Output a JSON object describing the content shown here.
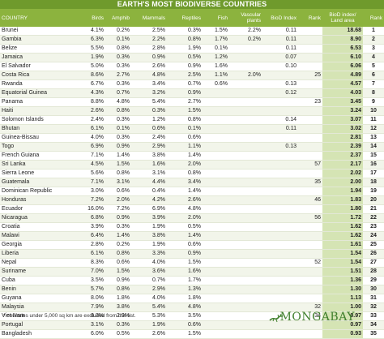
{
  "title": "EARTH'S MOST BIODIVERSE COUNTRIES",
  "columns": [
    "COUNTRY",
    "Birds",
    "Amphib",
    "Mammals",
    "Reptiles",
    "Fish",
    "Vascular plants",
    "BioD Index",
    "Rank",
    "BioD index/ Land area",
    "Rank"
  ],
  "rows": [
    [
      "Brunei",
      "4.1%",
      "0.2%",
      "2.5%",
      "0.3%",
      "1.5%",
      "2.2%",
      "0.11",
      "",
      "18.68",
      "1"
    ],
    [
      "Gambia",
      "6.3%",
      "0.1%",
      "2.2%",
      "0.8%",
      "1.7%",
      "0.2%",
      "0.11",
      "",
      "8.90",
      "2"
    ],
    [
      "Belize",
      "5.5%",
      "0.8%",
      "2.8%",
      "1.9%",
      "0.1%",
      "",
      "0.11",
      "",
      "6.53",
      "3"
    ],
    [
      "Jamaica",
      "1.9%",
      "0.3%",
      "0.9%",
      "0.5%",
      "1.2%",
      "",
      "0.07",
      "",
      "6.10",
      "4"
    ],
    [
      "El Salvador",
      "5.0%",
      "0.3%",
      "2.6%",
      "0.9%",
      "1.6%",
      "",
      "0.10",
      "",
      "6.06",
      "5"
    ],
    [
      "Costa Rica",
      "8.6%",
      "2.7%",
      "4.8%",
      "2.5%",
      "1.1%",
      "2.0%",
      "",
      "25",
      "4.89",
      "6"
    ],
    [
      "Rwanda",
      "6.7%",
      "0.3%",
      "3.4%",
      "0.7%",
      "0.6%",
      "",
      "0.13",
      "",
      "4.57",
      "7"
    ],
    [
      "Equatorial Guinea",
      "4.3%",
      "0.7%",
      "3.2%",
      "0.9%",
      "",
      "",
      "0.12",
      "",
      "4.03",
      "8"
    ],
    [
      "Panama",
      "8.8%",
      "4.8%",
      "5.4%",
      "2.7%",
      "",
      "",
      "",
      "23",
      "3.45",
      "9"
    ],
    [
      "Haiti",
      "2.6%",
      "0.8%",
      "0.3%",
      "1.5%",
      "",
      "",
      "",
      "",
      "3.24",
      "10"
    ],
    [
      "Solomon Islands",
      "2.4%",
      "0.3%",
      "1.2%",
      "0.8%",
      "",
      "",
      "0.14",
      "",
      "3.07",
      "11"
    ],
    [
      "Bhutan",
      "6.1%",
      "0.1%",
      "0.6%",
      "0.1%",
      "",
      "",
      "0.11",
      "",
      "3.02",
      "12"
    ],
    [
      "Guinea-Bissau",
      "4.0%",
      "0.3%",
      "2.4%",
      "0.6%",
      "",
      "",
      "",
      "",
      "2.81",
      "13"
    ],
    [
      "Togo",
      "6.9%",
      "0.9%",
      "2.9%",
      "1.1%",
      "",
      "",
      "0.13",
      "",
      "2.39",
      "14"
    ],
    [
      "French Guiana",
      "7.1%",
      "1.4%",
      "3.8%",
      "1.4%",
      "",
      "",
      "",
      "",
      "2.37",
      "15"
    ],
    [
      "Sri Lanka",
      "4.5%",
      "1.5%",
      "1.6%",
      "2.0%",
      "",
      "",
      "",
      "57",
      "2.17",
      "16"
    ],
    [
      "Sierra Leone",
      "5.6%",
      "0.8%",
      "3.1%",
      "0.8%",
      "",
      "",
      "",
      "",
      "2.02",
      "17"
    ],
    [
      "Guatemala",
      "7.1%",
      "3.1%",
      "4.4%",
      "3.4%",
      "",
      "",
      "",
      "35",
      "2.00",
      "18"
    ],
    [
      "Dominican Republic",
      "3.0%",
      "0.6%",
      "0.4%",
      "1.4%",
      "",
      "",
      "",
      "",
      "1.94",
      "19"
    ],
    [
      "Honduras",
      "7.2%",
      "2.0%",
      "4.2%",
      "2.6%",
      "",
      "",
      "",
      "46",
      "1.83",
      "20"
    ],
    [
      "Ecuador",
      "16.0%",
      "7.2%",
      "6.9%",
      "4.8%",
      "",
      "",
      "",
      "",
      "1.80",
      "21"
    ],
    [
      "Nicaragua",
      "6.8%",
      "0.9%",
      "3.9%",
      "2.0%",
      "",
      "",
      "",
      "56",
      "1.72",
      "22"
    ],
    [
      "Croatia",
      "3.9%",
      "0.3%",
      "1.9%",
      "0.5%",
      "",
      "",
      "",
      "",
      "1.62",
      "23"
    ],
    [
      "Malawi",
      "6.4%",
      "1.4%",
      "3.8%",
      "1.4%",
      "",
      "",
      "",
      "",
      "1.62",
      "24"
    ],
    [
      "Georgia",
      "2.8%",
      "0.2%",
      "1.9%",
      "0.6%",
      "",
      "",
      "",
      "",
      "1.61",
      "25"
    ],
    [
      "Liberia",
      "6.1%",
      "0.8%",
      "3.3%",
      "0.9%",
      "",
      "",
      "",
      "",
      "1.54",
      "26"
    ],
    [
      "Nepal",
      "8.3%",
      "0.6%",
      "4.0%",
      "1.5%",
      "",
      "",
      "",
      "52",
      "1.54",
      "27"
    ],
    [
      "Suriname",
      "7.0%",
      "1.5%",
      "3.6%",
      "1.6%",
      "",
      "",
      "",
      "",
      "1.51",
      "28"
    ],
    [
      "Cuba",
      "3.5%",
      "0.9%",
      "0.7%",
      "1.7%",
      "",
      "",
      "",
      "",
      "1.36",
      "29"
    ],
    [
      "Benin",
      "5.7%",
      "0.8%",
      "2.9%",
      "1.3%",
      "",
      "",
      "",
      "",
      "1.30",
      "30"
    ],
    [
      "Guyana",
      "8.0%",
      "1.8%",
      "4.0%",
      "1.8%",
      "",
      "",
      "",
      "",
      "1.13",
      "31"
    ],
    [
      "Malaysia",
      "7.9%",
      "3.8%",
      "5.4%",
      "4.8%",
      "",
      "",
      "",
      "32",
      "1.00",
      "32"
    ],
    [
      "Viet Nam",
      "8.3%",
      "2.9%",
      "5.3%",
      "3.5%",
      "",
      "",
      "",
      "34",
      "0.97",
      "33"
    ],
    [
      "Portugal",
      "3.1%",
      "0.3%",
      "1.9%",
      "0.6%",
      "",
      "",
      "",
      "",
      "0.97",
      "34"
    ],
    [
      "Bangladesh",
      "6.0%",
      "0.5%",
      "2.6%",
      "1.5%",
      "",
      "",
      "",
      "",
      "0.93",
      "35"
    ]
  ],
  "footnote": "* countries under 5,000 sq km are excluded from this list.",
  "brand": "MONGABAY",
  "colors": {
    "header": "#8cb33e",
    "title": "#6f9a2c",
    "highlight": "#d5e4b4",
    "brand": "#3f7f2c"
  }
}
